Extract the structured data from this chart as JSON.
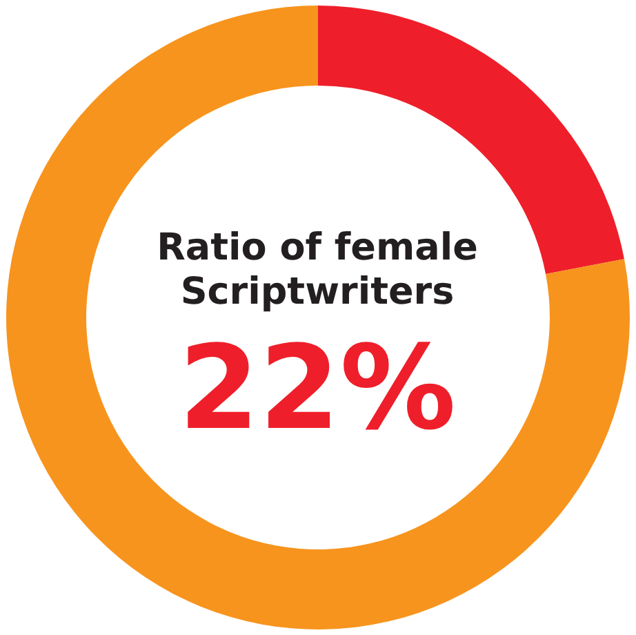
{
  "chart_data": {
    "type": "donut",
    "title": "Ratio of female\nScriptwriters",
    "categories": [
      null,
      null
    ],
    "values": [
      22,
      78
    ],
    "colors": [
      "#ee1f2a",
      "#f7941d"
    ],
    "annotations": [
      "22%"
    ],
    "legend": false
  }
}
